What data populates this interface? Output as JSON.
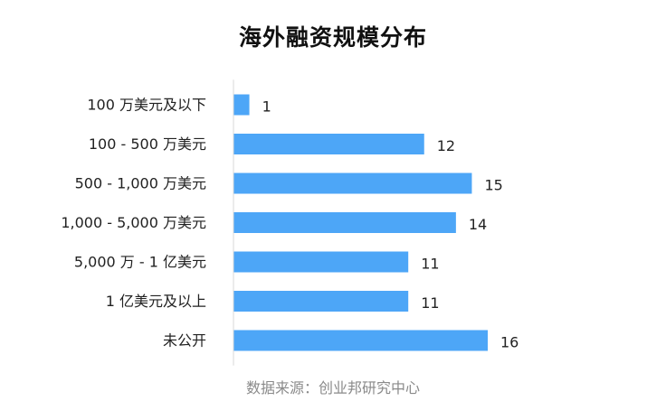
{
  "chart_data": {
    "type": "bar",
    "orientation": "horizontal",
    "title": "海外融资规模分布",
    "categories": [
      "100 万美元及以下",
      "100 - 500 万美元",
      "500 - 1,000 万美元",
      "1,000 - 5,000 万美元",
      "5,000 万 - 1 亿美元",
      "1 亿美元及以上",
      "未公开"
    ],
    "values": [
      1,
      12,
      15,
      14,
      11,
      11,
      16
    ],
    "xlim": [
      0,
      16
    ],
    "grid": false,
    "legend": "none",
    "bar_color": "#4da6f7",
    "source": "数据来源：创业邦研究中心"
  }
}
